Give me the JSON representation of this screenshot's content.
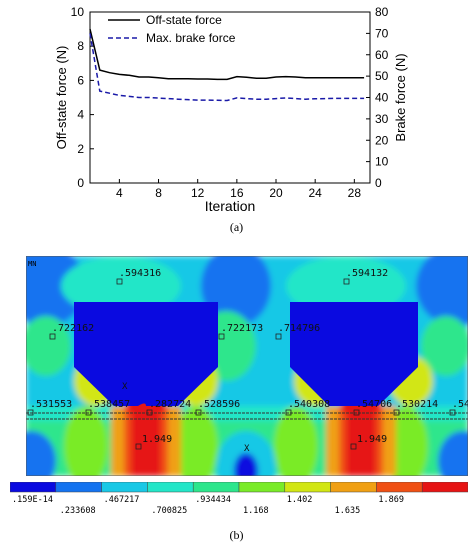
{
  "colors": {
    "solid_line": "#000000",
    "dashed_line": "#1a1aa8",
    "contour": [
      "#0a0ae0",
      "#1473f0",
      "#19c8e6",
      "#23e6c8",
      "#2de68c",
      "#7aeb28",
      "#d2e614",
      "#f0a014",
      "#f05014",
      "#e61414"
    ]
  },
  "chart_data": {
    "type": "line",
    "title": "",
    "xlabel": "Iteration",
    "ylabel": "Off-state force (N)",
    "y2label": "Brake force (N)",
    "xlim": [
      1,
      29.6
    ],
    "ylim": [
      0,
      10
    ],
    "y2lim": [
      0,
      80
    ],
    "xticks": [
      4,
      8,
      12,
      16,
      20,
      24,
      28
    ],
    "yticks": [
      0,
      2,
      4,
      6,
      8,
      10
    ],
    "y2ticks": [
      0,
      10,
      20,
      30,
      40,
      50,
      60,
      70,
      80
    ],
    "legend_position": "top-right",
    "grid": false,
    "series": [
      {
        "name": "Off-state force",
        "axis": "left",
        "style": "solid",
        "x": [
          1,
          2,
          3,
          4,
          5,
          6,
          7,
          8,
          9,
          10,
          11,
          12,
          13,
          14,
          15,
          16,
          17,
          18,
          19,
          20,
          21,
          22,
          23,
          24,
          25,
          26,
          27,
          28,
          29
        ],
        "y": [
          9.0,
          6.6,
          6.45,
          6.35,
          6.3,
          6.2,
          6.2,
          6.15,
          6.1,
          6.1,
          6.1,
          6.08,
          6.08,
          6.06,
          6.06,
          6.22,
          6.18,
          6.12,
          6.12,
          6.2,
          6.22,
          6.2,
          6.15,
          6.15,
          6.16,
          6.15,
          6.16,
          6.15,
          6.15
        ]
      },
      {
        "name": "Max. brake force",
        "axis": "right",
        "style": "dashed",
        "x": [
          1,
          2,
          3,
          4,
          5,
          6,
          7,
          8,
          9,
          10,
          11,
          12,
          13,
          14,
          15,
          16,
          17,
          18,
          19,
          20,
          21,
          22,
          23,
          24,
          25,
          26,
          27,
          28,
          29
        ],
        "y": [
          70,
          43,
          42,
          41,
          40.5,
          40,
          40,
          39.7,
          39.5,
          39.2,
          39,
          38.8,
          38.8,
          38.7,
          38.6,
          39.8,
          39.5,
          39.2,
          39.2,
          39.5,
          39.8,
          39.5,
          39.2,
          39.4,
          39.5,
          39.6,
          39.6,
          39.6,
          39.6
        ]
      }
    ]
  },
  "caption_a": "(a)",
  "caption_b": "(b)",
  "fea": {
    "corner_label": "MN",
    "values": [
      ".594316",
      ".594132",
      ".722162",
      ".722173",
      ".714796",
      ".531553",
      ".538457",
      ".282724",
      ".528596",
      ".540308",
      ".54706",
      ".530214",
      ".54",
      "1.949",
      "1.949"
    ],
    "markers": [
      "X",
      "X"
    ],
    "colorbar_ticks_top": [
      ".159E-14",
      ".467217",
      ".934434",
      "1.402",
      "1.869"
    ],
    "colorbar_ticks_bottom": [
      ".233608",
      ".700825",
      "1.168",
      "1.635"
    ]
  }
}
